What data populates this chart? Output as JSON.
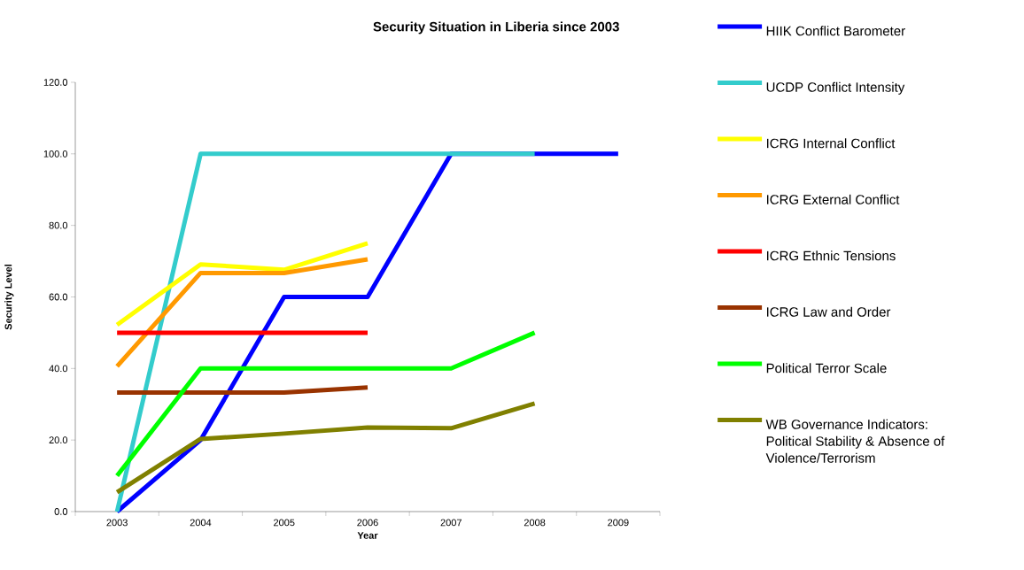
{
  "chart_data": {
    "type": "line",
    "title": "Security Situation in Liberia since 2003",
    "xlabel": "Year",
    "ylabel": "Security Level",
    "categories": [
      "2003",
      "2004",
      "2005",
      "2006",
      "2007",
      "2008",
      "2009"
    ],
    "ylim": [
      0,
      120
    ],
    "yticks": [
      {
        "value": 0,
        "label": "0.0"
      },
      {
        "value": 20,
        "label": "20.0"
      },
      {
        "value": 40,
        "label": "40.0"
      },
      {
        "value": 60,
        "label": "60.0"
      },
      {
        "value": 80,
        "label": "80.0"
      },
      {
        "value": 100,
        "label": "100.0"
      },
      {
        "value": 120,
        "label": "120.0"
      }
    ],
    "legend": "right",
    "series": [
      {
        "name": "HIIK Conflict Barometer",
        "color": "#0000ff",
        "values": [
          0,
          20,
          60,
          60,
          100,
          100,
          100
        ]
      },
      {
        "name": "UCDP Conflict Intensity",
        "color": "#33cccc",
        "values": [
          0,
          100,
          100,
          100,
          100,
          100,
          null
        ]
      },
      {
        "name": "ICRG Internal Conflict",
        "color": "#ffff00",
        "values": [
          52.2,
          69.1,
          67.6,
          75,
          null,
          null,
          null
        ]
      },
      {
        "name": "ICRG External Conflict",
        "color": "#ff9900",
        "values": [
          40.6,
          66.7,
          66.7,
          70.5,
          null,
          null,
          null
        ]
      },
      {
        "name": "ICRG Ethnic Tensions",
        "color": "#ff0000",
        "values": [
          50,
          50,
          50,
          50,
          null,
          null,
          null
        ]
      },
      {
        "name": "ICRG Law and Order",
        "color": "#993300",
        "values": [
          33.3,
          33.3,
          33.3,
          34.7,
          null,
          null,
          null
        ]
      },
      {
        "name": "Political Terror Scale",
        "color": "#00ff00",
        "values": [
          10,
          40,
          40,
          40,
          40,
          50,
          null
        ]
      },
      {
        "name": "WB Governance Indicators: Political Stability & Absence of Violence/Terrorism",
        "color": "#808000",
        "values": [
          5.4,
          20.3,
          21.8,
          23.5,
          23.3,
          30.2,
          null
        ]
      }
    ]
  }
}
